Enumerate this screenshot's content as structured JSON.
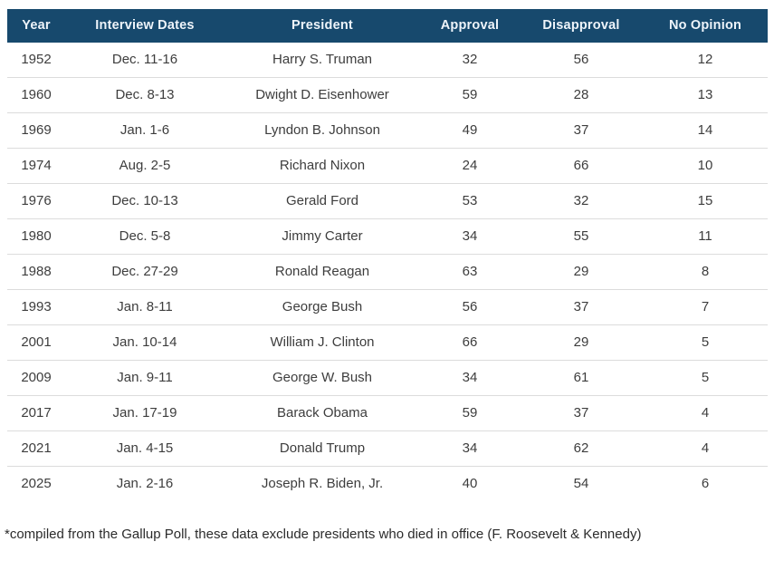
{
  "colors": {
    "header_bg": "#17496d",
    "header_text": "#eef4fa",
    "row_divider": "#dcdcdc",
    "body_text": "#3d3d3d",
    "footnote_text": "#2b2b2b",
    "page_bg": "#ffffff"
  },
  "chart_data": {
    "type": "table",
    "columns": [
      "Year",
      "Interview Dates",
      "President",
      "Approval",
      "Disapproval",
      "No Opinion"
    ],
    "rows": [
      [
        1952,
        "Dec. 11-16",
        "Harry S. Truman",
        32,
        56,
        12
      ],
      [
        1960,
        "Dec. 8-13",
        "Dwight D. Eisenhower",
        59,
        28,
        13
      ],
      [
        1969,
        "Jan. 1-6",
        "Lyndon B. Johnson",
        49,
        37,
        14
      ],
      [
        1974,
        "Aug. 2-5",
        "Richard Nixon",
        24,
        66,
        10
      ],
      [
        1976,
        "Dec. 10-13",
        "Gerald Ford",
        53,
        32,
        15
      ],
      [
        1980,
        "Dec. 5-8",
        "Jimmy Carter",
        34,
        55,
        11
      ],
      [
        1988,
        "Dec. 27-29",
        "Ronald Reagan",
        63,
        29,
        8
      ],
      [
        1993,
        "Jan. 8-11",
        "George Bush",
        56,
        37,
        7
      ],
      [
        2001,
        "Jan. 10-14",
        "William J. Clinton",
        66,
        29,
        5
      ],
      [
        2009,
        "Jan. 9-11",
        "George W. Bush",
        34,
        61,
        5
      ],
      [
        2017,
        "Jan. 17-19",
        "Barack Obama",
        59,
        37,
        4
      ],
      [
        2021,
        "Jan. 4-15",
        "Donald Trump",
        34,
        62,
        4
      ],
      [
        2025,
        "Jan. 2-16",
        "Joseph R. Biden, Jr.",
        40,
        54,
        6
      ]
    ],
    "footnote": "*compiled from the Gallup Poll, these data exclude presidents who died in office (F. Roosevelt & Kennedy)"
  }
}
